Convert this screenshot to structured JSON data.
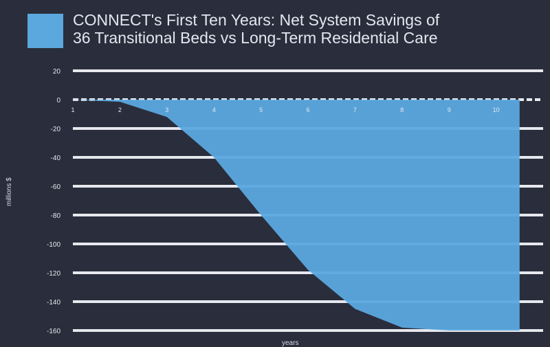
{
  "chart_data": {
    "type": "area",
    "title_line1": "CONNECT's First Ten Years: Net System Savings of",
    "title_line2": "36 Transitional Beds vs Long-Term Residential Care",
    "xlabel": "years",
    "ylabel": "millions $",
    "series": [
      {
        "name": "",
        "color": "#5ba8df",
        "x": [
          1,
          2,
          3,
          4,
          5,
          6,
          7,
          8,
          9,
          10,
          10.5
        ],
        "y": [
          0,
          -1.5,
          -12,
          -40,
          -80,
          -118,
          -145,
          -158,
          -160,
          -160,
          -160
        ]
      }
    ],
    "x_ticks": [
      "1",
      "2",
      "3",
      "4",
      "5",
      "6",
      "7",
      "8",
      "9",
      "10"
    ],
    "y_ticks": [
      "20",
      "0",
      "-20",
      "-40",
      "-60",
      "-80",
      "-100",
      "-120",
      "-140",
      "-160"
    ],
    "xlim": [
      1,
      11
    ],
    "ylim": [
      -160,
      20
    ],
    "grid": true,
    "colors": {
      "background": "#2a2d3b",
      "area": "#5ba8df",
      "grid": "#e6e8ee"
    }
  }
}
